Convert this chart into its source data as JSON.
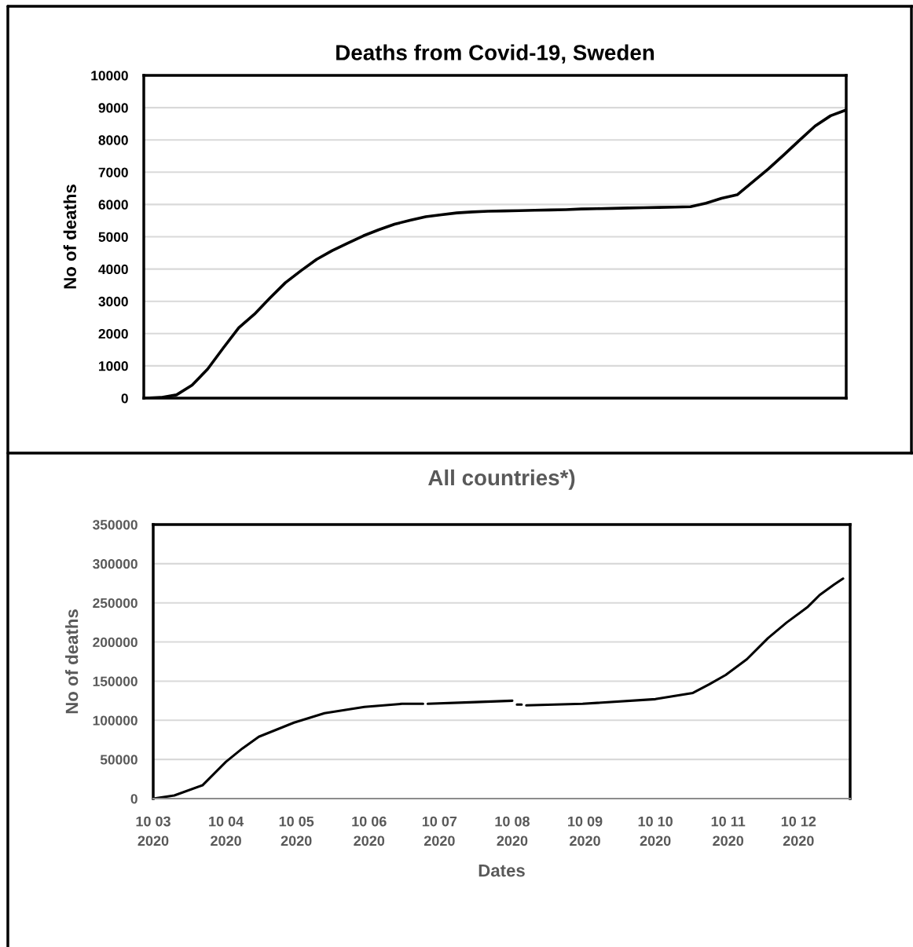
{
  "chart_data": [
    {
      "type": "line",
      "title": "Deaths from Covid-19, Sweden",
      "ylabel": "No of deaths",
      "categories": [
        null,
        null,
        null,
        null,
        null,
        null,
        null,
        null,
        null,
        null,
        null,
        null,
        null,
        null,
        null,
        null,
        null,
        null,
        null,
        null,
        null,
        null,
        null,
        null,
        null,
        null,
        null,
        null,
        null,
        null,
        null,
        null,
        null,
        null,
        null,
        null,
        null,
        null,
        null,
        null,
        null,
        null,
        null,
        null,
        null,
        null
      ],
      "ylim": [
        0,
        10000
      ],
      "yticks": [
        0,
        1000,
        2000,
        3000,
        4000,
        5000,
        6000,
        7000,
        8000,
        9000,
        10000
      ],
      "tick_labels": "y",
      "grid": "y",
      "series": [
        {
          "color": "#000000",
          "values": [
            0,
            20,
            100,
            400,
            900,
            1550,
            2180,
            2600,
            3100,
            3580,
            3950,
            4300,
            4570,
            4800,
            5030,
            5220,
            5390,
            5510,
            5620,
            5680,
            5740,
            5770,
            5790,
            5800,
            5810,
            5820,
            5830,
            5840,
            5860,
            5870,
            5880,
            5890,
            5900,
            5910,
            5920,
            5930,
            6040,
            6190,
            6300,
            6700,
            7100,
            7540,
            7990,
            8430,
            8750,
            8930
          ]
        }
      ]
    },
    {
      "type": "line",
      "title": "All countries*)",
      "ylabel": "No of deaths",
      "xlabel": "Dates",
      "xlim": [
        "2020-03-10",
        "2021-01-01"
      ],
      "ylim": [
        0,
        350000
      ],
      "yticks": [
        0,
        50000,
        100000,
        150000,
        200000,
        250000,
        300000,
        350000
      ],
      "xticks": [
        {
          "value": "2020-03-10",
          "label": "10 03\n2020"
        },
        {
          "value": "2020-04-10",
          "label": "10 04\n2020"
        },
        {
          "value": "2020-05-10",
          "label": "10 05\n2020"
        },
        {
          "value": "2020-06-10",
          "label": "10 06\n2020"
        },
        {
          "value": "2020-07-10",
          "label": "10 07\n2020"
        },
        {
          "value": "2020-08-10",
          "label": "10 08\n2020"
        },
        {
          "value": "2020-09-10",
          "label": "10 09\n2020"
        },
        {
          "value": "2020-10-10",
          "label": "10 10\n2020"
        },
        {
          "value": "2020-11-10",
          "label": "10 11\n2020"
        },
        {
          "value": "2020-12-10",
          "label": "10 12\n2020"
        }
      ],
      "grid": "y",
      "series": [
        {
          "color": "#000000",
          "x": [
            "2020-03-10",
            "2020-03-19",
            "2020-03-31",
            "2020-04-10",
            "2020-04-17",
            "2020-04-24",
            "2020-05-09",
            "2020-05-22",
            "2020-06-08",
            "2020-06-24",
            "2020-07-03",
            "2020-07-04",
            "2020-07-05",
            "2020-07-23",
            "2020-08-10",
            "2020-08-11",
            "2020-08-12",
            "2020-08-14",
            "2020-08-15",
            "2020-08-16",
            "2020-09-09",
            "2020-10-10",
            "2020-10-26",
            "2020-11-02",
            "2020-11-09",
            "2020-11-18",
            "2020-11-27",
            "2020-12-05",
            "2020-12-14",
            "2020-12-19",
            "2020-12-25",
            "2020-12-29"
          ],
          "values": [
            0,
            4000,
            17000,
            47000,
            64000,
            79000,
            97000,
            109000,
            117000,
            121000,
            121000,
            null,
            121000,
            123000,
            125000,
            null,
            120000,
            120000,
            null,
            119000,
            121000,
            127000,
            135000,
            146000,
            158000,
            178000,
            205000,
            225000,
            245000,
            260000,
            273000,
            281000
          ]
        }
      ]
    }
  ]
}
